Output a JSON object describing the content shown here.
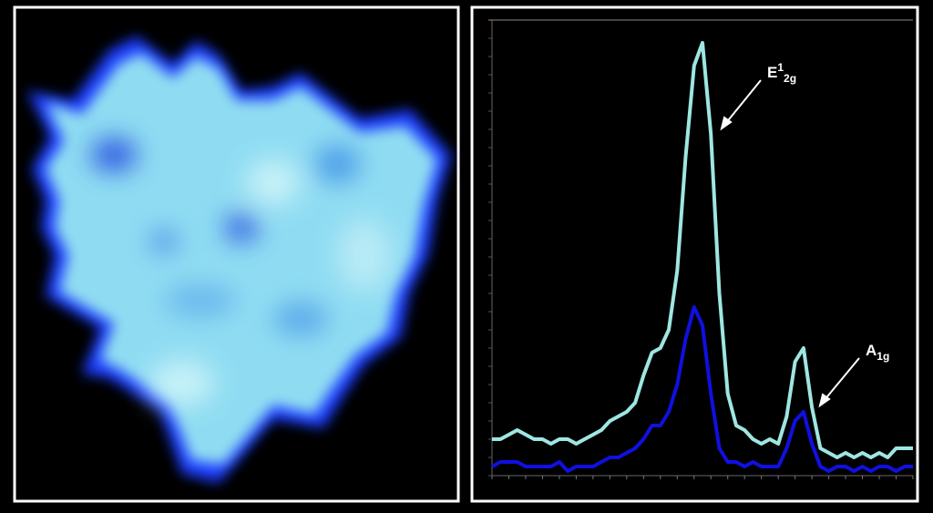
{
  "chart_data": {
    "type": "line",
    "x": [
      0,
      2,
      4,
      6,
      8,
      10,
      12,
      14,
      16,
      18,
      20,
      22,
      24,
      26,
      28,
      30,
      32,
      34,
      36,
      38,
      40,
      42,
      44,
      46,
      48,
      50,
      52,
      54,
      56,
      58,
      60,
      62,
      64,
      66,
      68,
      70,
      72,
      74,
      76,
      78,
      80,
      82,
      84,
      86,
      88,
      90,
      92,
      94,
      96,
      98,
      100
    ],
    "series": [
      {
        "color": "#9ee6e2",
        "values": [
          8,
          8,
          9,
          10,
          9,
          8,
          8,
          7,
          8,
          8,
          7,
          8,
          9,
          10,
          12,
          13,
          14,
          16,
          22,
          27,
          28,
          32,
          45,
          70,
          90,
          95,
          75,
          40,
          18,
          11,
          10,
          8,
          7,
          8,
          7,
          13,
          25,
          28,
          15,
          6,
          5,
          4,
          5,
          4,
          5,
          4,
          5,
          4,
          6,
          6,
          6
        ]
      },
      {
        "color": "#1010e0",
        "values": [
          2,
          3,
          3,
          3,
          2,
          2,
          2,
          2,
          3,
          1,
          2,
          2,
          2,
          3,
          4,
          4,
          5,
          6,
          8,
          11,
          11,
          14,
          20,
          30,
          37,
          33,
          18,
          6,
          3,
          3,
          2,
          3,
          2,
          2,
          2,
          6,
          12,
          14,
          7,
          2,
          1,
          2,
          2,
          1,
          2,
          1,
          2,
          2,
          1,
          2,
          2
        ]
      }
    ],
    "xlim": [
      0,
      100
    ],
    "ylim": [
      0,
      100
    ],
    "xticks": [
      0,
      4,
      8,
      12,
      16,
      20,
      24,
      28,
      32,
      36,
      40,
      44,
      48,
      52,
      56,
      60,
      64,
      68,
      72,
      76,
      80,
      84,
      88,
      92,
      96,
      100
    ],
    "yticks": [
      0,
      4,
      8,
      12,
      16,
      20,
      24,
      28,
      32,
      36,
      40,
      44,
      48,
      52,
      56,
      60,
      64,
      68,
      72,
      76,
      80,
      84,
      88,
      92,
      96,
      100
    ],
    "annotations": [
      {
        "base": "E",
        "sup": "1",
        "sub": "2g"
      },
      {
        "base": "A",
        "sub": "1g"
      }
    ]
  }
}
